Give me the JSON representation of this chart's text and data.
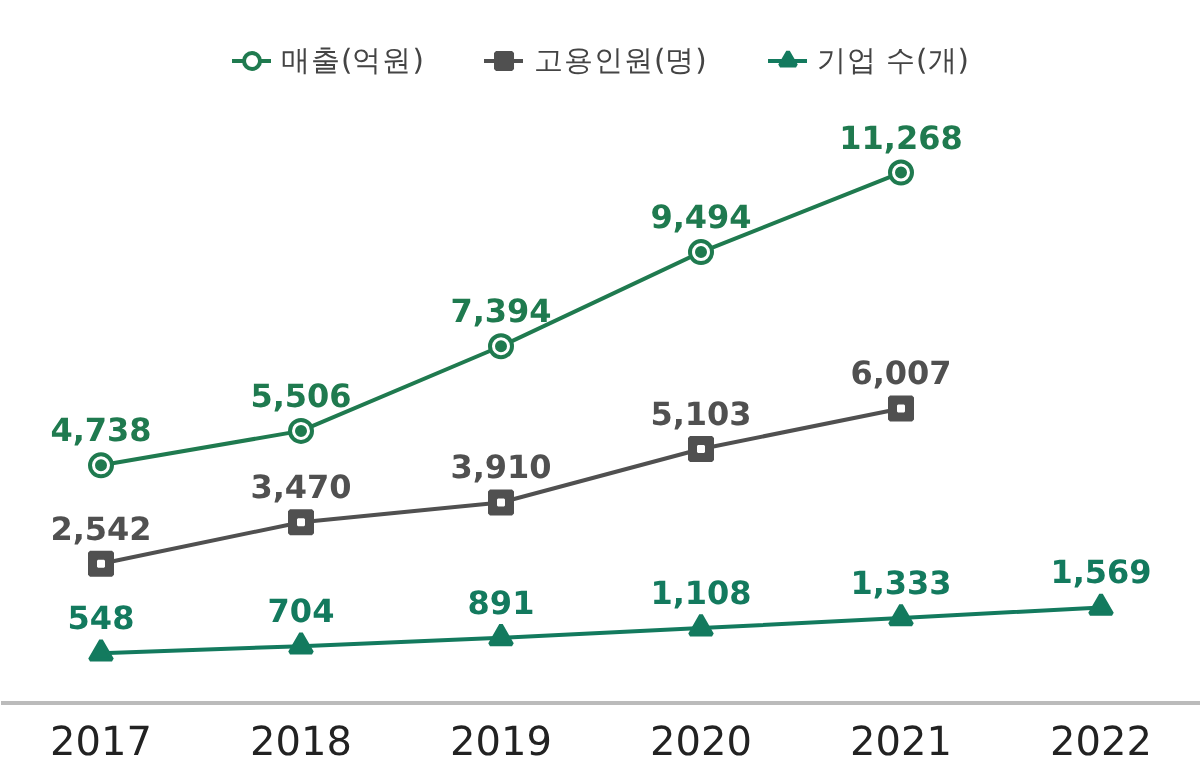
{
  "chart_data": {
    "type": "line",
    "categories": [
      "2017",
      "2018",
      "2019",
      "2020",
      "2021",
      "2022"
    ],
    "series": [
      {
        "name": "매출(억원)",
        "color": "#1f7a4f",
        "marker": "circle",
        "values": [
          4738,
          5506,
          7394,
          9494,
          11268,
          null
        ],
        "value_labels": [
          "4,738",
          "5,506",
          "7,394",
          "9,494",
          "11,268",
          null
        ]
      },
      {
        "name": "고용인원(명)",
        "color": "#505050",
        "marker": "square",
        "values": [
          2542,
          3470,
          3910,
          5103,
          6007,
          null
        ],
        "value_labels": [
          "2,542",
          "3,470",
          "3,910",
          "5,103",
          "6,007",
          null
        ]
      },
      {
        "name": "기업 수(개)",
        "color": "#137a5e",
        "marker": "triangle",
        "values": [
          548,
          704,
          891,
          1108,
          1333,
          1569
        ],
        "value_labels": [
          "548",
          "704",
          "891",
          "1,108",
          "1,333",
          "1,569"
        ]
      }
    ],
    "legend": "top",
    "tick_labels": "x",
    "line_style": "solid"
  }
}
